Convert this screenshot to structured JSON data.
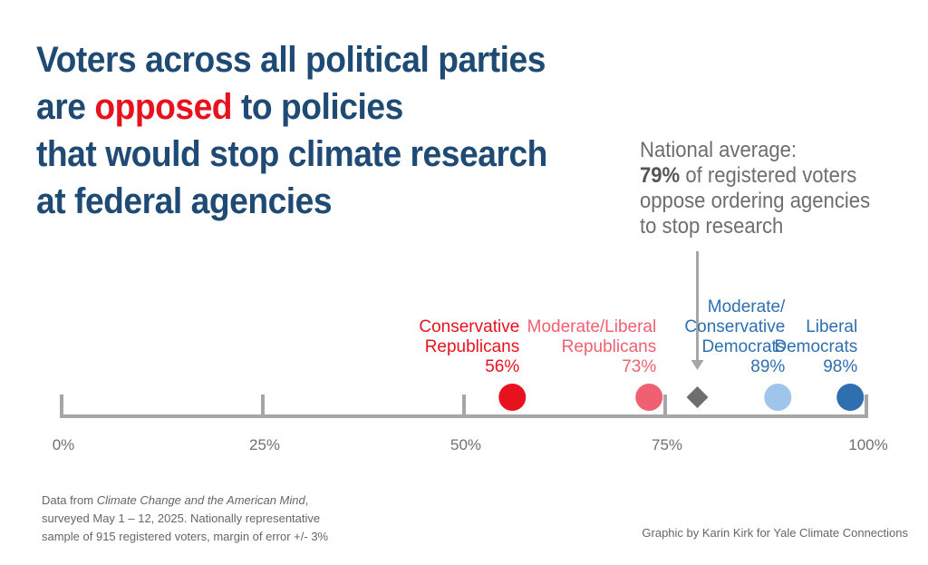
{
  "title": {
    "line1": "Voters across all political parties",
    "line2_pre": "are ",
    "line2_highlight": "opposed",
    "line2_post": " to policies",
    "line3": "that would stop climate research",
    "line4": "at federal agencies"
  },
  "annotation": {
    "line1": "National average:",
    "line2_bold": "79%",
    "line2_rest": " of registered voters",
    "line3": "oppose ordering agencies",
    "line4": "to stop research"
  },
  "colors": {
    "title": "#1e4a74",
    "highlight": "#e8121e",
    "axis": "#a6a6a6"
  },
  "chart_data": {
    "type": "scatter",
    "axis": {
      "min": 0,
      "max": 100,
      "ticks": [
        0,
        25,
        50,
        75,
        100
      ],
      "tick_labels": [
        "0%",
        "25%",
        "50%",
        "75%",
        "100%"
      ]
    },
    "series": [
      {
        "name": "Conservative Republicans",
        "label_lines": [
          "Conservative",
          "Republicans"
        ],
        "value": 56,
        "value_label": "56%",
        "color": "#e8121e",
        "label_color": "#e8121e",
        "marker": "circle"
      },
      {
        "name": "Moderate/Liberal Republicans",
        "label_lines": [
          "Moderate/Liberal",
          "Republicans"
        ],
        "value": 73,
        "value_label": "73%",
        "color": "#f06070",
        "label_color": "#f06070",
        "marker": "circle"
      },
      {
        "name": "Moderate/Conservative Democrats",
        "label_lines": [
          "Moderate/",
          "Conservative",
          "Democrats"
        ],
        "value": 89,
        "value_label": "89%",
        "color": "#9fc5ea",
        "label_color": "#2e6fb0",
        "marker": "circle"
      },
      {
        "name": "Liberal Democrats",
        "label_lines": [
          "Liberal",
          "Democrats"
        ],
        "value": 98,
        "value_label": "98%",
        "color": "#2e6fb0",
        "label_color": "#2e6fb0",
        "marker": "circle"
      }
    ],
    "national_average": {
      "value": 79,
      "color": "#6e6e6e",
      "marker": "diamond"
    }
  },
  "footnote": {
    "line1_pre": "Data from ",
    "line1_italic": "Climate Change and the American Mind",
    "line1_post": ",",
    "line2": "surveyed May 1 – 12, 2025. Nationally representative",
    "line3": "sample of 915 registered voters, margin of error +/- 3%"
  },
  "credit": "Graphic by Karin Kirk for Yale Climate Connections"
}
